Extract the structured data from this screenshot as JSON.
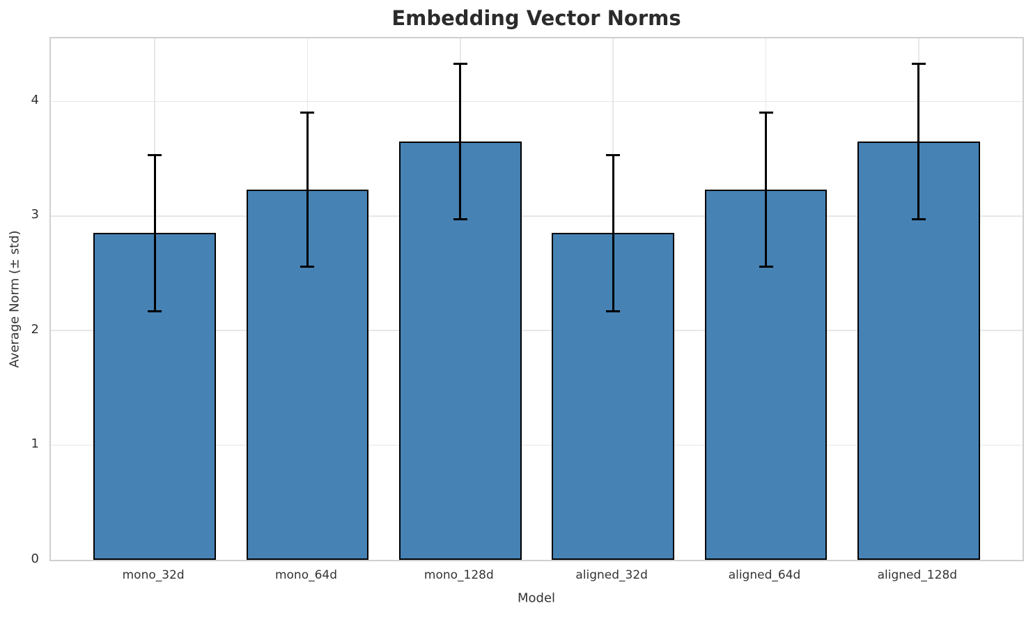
{
  "chart_data": {
    "type": "bar",
    "title": "Embedding Vector Norms",
    "xlabel": "Model",
    "ylabel": "Average Norm (± std)",
    "categories": [
      "mono_32d",
      "mono_64d",
      "mono_128d",
      "aligned_32d",
      "aligned_64d",
      "aligned_128d"
    ],
    "values": [
      2.85,
      3.23,
      3.65,
      2.85,
      3.23,
      3.65
    ],
    "errors": [
      0.68,
      0.67,
      0.68,
      0.68,
      0.67,
      0.68
    ],
    "yticks": [
      0,
      1,
      2,
      3,
      4
    ],
    "ylim": [
      0,
      4.55
    ],
    "xlim": [
      -0.68,
      5.68
    ],
    "bar_width_units": 0.8,
    "grid": true,
    "legend": null,
    "colors": {
      "bar_fill": "#4682b4",
      "bar_edge": "#000000",
      "error_bar": "#000000",
      "grid_line": "#e7e7e7",
      "spine": "#cfcfcf",
      "text": "#333333",
      "title_text": "#2b2b2b",
      "background": "#ffffff"
    }
  }
}
